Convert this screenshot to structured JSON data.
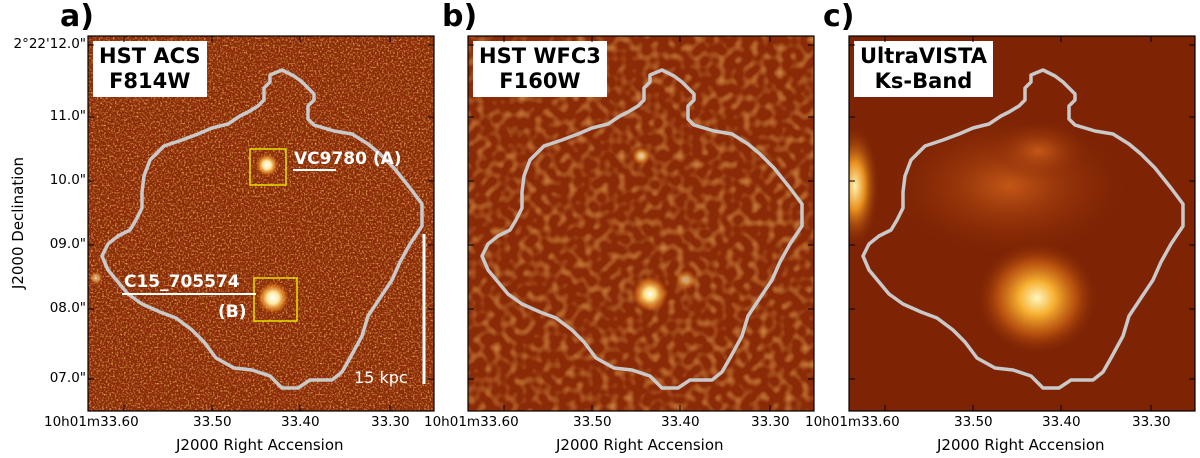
{
  "panels": [
    {
      "letter": "a)",
      "label_line1": "HST ACS",
      "label_line2": "F814W"
    },
    {
      "letter": "b)",
      "label_line1": "HST WFC3",
      "label_line2": "F160W"
    },
    {
      "letter": "c)",
      "label_line1": "UltraVISTA",
      "label_line2": "Ks-Band"
    }
  ],
  "y_axis": {
    "title": "J2000 Declination",
    "ticks": [
      "2°22'12.0\"",
      "11.0\"",
      "10.0\"",
      "09.0\"",
      "08.0\"",
      "07.0\""
    ]
  },
  "x_axis": {
    "title": "J2000 Right Accension",
    "ticks": [
      "10h01m33.60",
      "33.50",
      "33.40",
      "33.30"
    ]
  },
  "annotations": {
    "source_a_name": "VC9780",
    "source_a_tag": "(A)",
    "source_b_name": "C15_705574",
    "source_b_tag": "(B)",
    "scale_bar": "15 kpc"
  },
  "colors": {
    "background": "#8a2a06",
    "contour": "#c9c9c9",
    "box": "#e8e000",
    "text": "#ffffff"
  }
}
